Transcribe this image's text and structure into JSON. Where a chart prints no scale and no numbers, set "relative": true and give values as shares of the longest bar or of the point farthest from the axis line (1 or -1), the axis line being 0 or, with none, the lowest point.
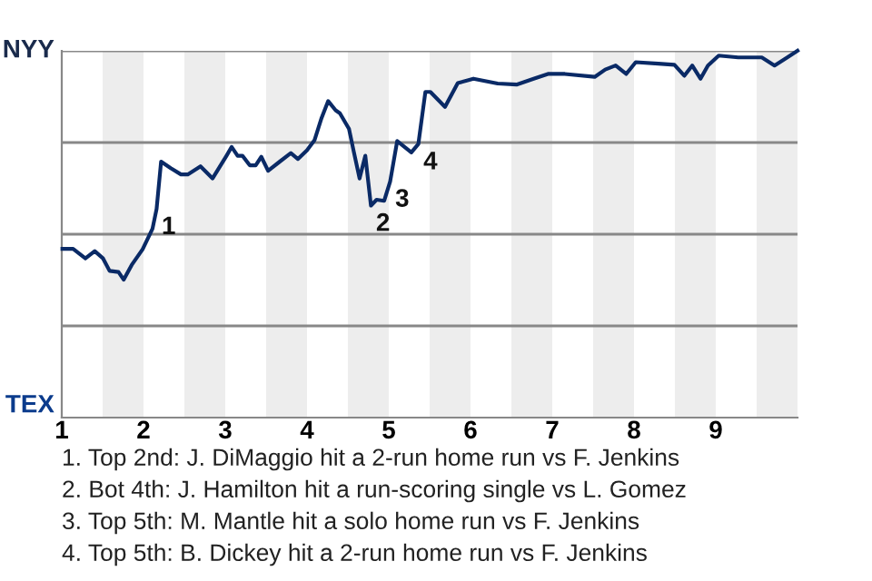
{
  "chart_data": {
    "type": "line",
    "relative": true,
    "x": [
      1.008,
      1.139,
      1.289,
      1.403,
      1.505,
      1.585,
      1.694,
      1.758,
      1.855,
      1.989,
      2.11,
      2.16,
      2.215,
      2.333,
      2.458,
      2.541,
      2.697,
      2.844,
      3.015,
      3.078,
      3.151,
      3.21,
      3.299,
      3.372,
      3.441,
      3.524,
      3.667,
      3.802,
      3.888,
      4.0,
      4.091,
      4.178,
      4.259,
      4.35,
      4.402,
      4.514,
      4.574,
      4.643,
      4.713,
      4.782,
      4.851,
      4.944,
      5.017,
      5.103,
      5.276,
      5.362,
      5.448,
      5.509,
      5.688,
      5.844,
      6.036,
      6.332,
      6.563,
      6.772,
      6.947,
      7.154,
      7.519,
      7.648,
      7.775,
      7.904,
      8.021,
      8.298,
      8.494,
      8.615,
      8.712,
      8.813,
      8.904,
      9.036,
      9.275,
      9.563,
      9.719,
      9.875,
      10
    ],
    "series": [
      {
        "color": "#0a2a66",
        "values": [
          0.46,
          0.46,
          0.434,
          0.454,
          0.434,
          0.4,
          0.397,
          0.376,
          0.416,
          0.459,
          0.515,
          0.569,
          0.698,
          0.68,
          0.663,
          0.663,
          0.685,
          0.652,
          0.714,
          0.738,
          0.714,
          0.714,
          0.688,
          0.688,
          0.711,
          0.673,
          0.698,
          0.721,
          0.705,
          0.729,
          0.756,
          0.817,
          0.863,
          0.838,
          0.83,
          0.787,
          0.723,
          0.652,
          0.714,
          0.578,
          0.594,
          0.591,
          0.644,
          0.754,
          0.723,
          0.746,
          0.888,
          0.888,
          0.847,
          0.912,
          0.924,
          0.911,
          0.908,
          0.924,
          0.937,
          0.937,
          0.929,
          0.949,
          0.96,
          0.937,
          0.969,
          0.965,
          0.962,
          0.932,
          0.96,
          0.924,
          0.96,
          0.987,
          0.982,
          0.982,
          0.96,
          0.982,
          1.0
        ]
      }
    ],
    "xlim": [
      1,
      10
    ],
    "xticks": [
      1,
      2,
      3,
      4,
      5,
      6,
      7,
      8,
      9
    ],
    "marker": "none",
    "line_style": "solid",
    "ref_lines": [
      {
        "axis": "y",
        "value": 0.25,
        "color": "#888888"
      },
      {
        "axis": "y",
        "value": 0.5,
        "color": "#888888"
      },
      {
        "axis": "y",
        "value": 0.75,
        "color": "#888888"
      },
      {
        "axis": "y",
        "value": 1,
        "color": "#888888"
      }
    ],
    "bands": [
      {
        "axis": "x",
        "from": 1.5,
        "to": 2,
        "color": "#ededed"
      },
      {
        "axis": "x",
        "from": 2.5,
        "to": 3,
        "color": "#ededed"
      },
      {
        "axis": "x",
        "from": 3.5,
        "to": 4,
        "color": "#ededed"
      },
      {
        "axis": "x",
        "from": 4.5,
        "to": 5,
        "color": "#ededed"
      },
      {
        "axis": "x",
        "from": 5.5,
        "to": 6,
        "color": "#ededed"
      },
      {
        "axis": "x",
        "from": 6.5,
        "to": 7,
        "color": "#ededed"
      },
      {
        "axis": "x",
        "from": 7.5,
        "to": 8,
        "color": "#ededed"
      },
      {
        "axis": "x",
        "from": 8.5,
        "to": 9,
        "color": "#ededed"
      },
      {
        "axis": "x",
        "from": 9.5,
        "to": 10,
        "color": "#ededed"
      }
    ],
    "annotations": [
      "NYY",
      "TEX",
      {
        "text": "1",
        "x": 2.16,
        "y": 0.569
      },
      {
        "text": "2",
        "x": 4.782,
        "y": 0.578
      },
      {
        "text": "3",
        "x": 5.017,
        "y": 0.644
      },
      {
        "text": "4",
        "x": 5.362,
        "y": 0.746
      },
      "1. Top 2nd: J. DiMaggio hit a 2-run home run vs F. Jenkins",
      "2. Bot 4th: J. Hamilton hit a run-scoring single vs L. Gomez",
      "3. Top 5th: M. Mantle hit a solo home run vs F. Jenkins",
      "4. Top 5th: B. Dickey hit a 2-run home run vs F. Jenkins"
    ]
  }
}
